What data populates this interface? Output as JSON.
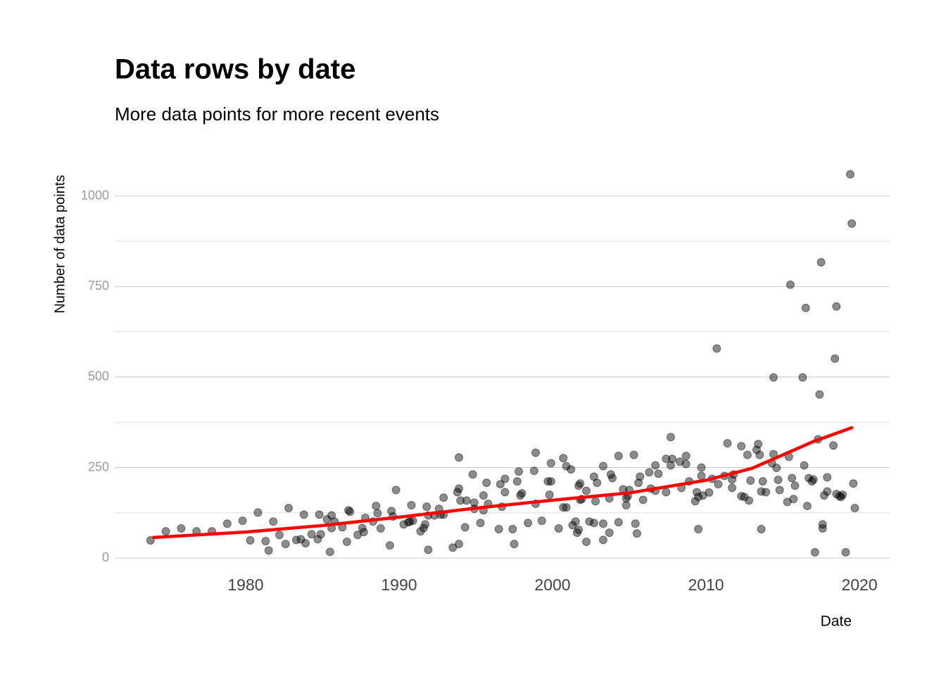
{
  "chart_data": {
    "type": "scatter",
    "title": "Data rows by date",
    "subtitle": "More data points for more recent events",
    "x_label": "Date",
    "y_label": "Number of data points",
    "xlim": [
      1971.47,
      2021.97
    ],
    "ylim": [
      -23,
      1075
    ],
    "xticks": [
      1980,
      1990,
      2000,
      2010,
      2020
    ],
    "yticks": [
      0,
      250,
      500,
      750,
      1000
    ],
    "y_minor_ticks": [
      125,
      375,
      625,
      875
    ],
    "grid": true,
    "color": "#000000",
    "opacity": 0.45,
    "x": [
      1973.8,
      1974.8,
      1975.8,
      1976.8,
      1977.8,
      1978.8,
      1979.8,
      1980.3,
      1980.8,
      1981.3,
      1981.5,
      1981.8,
      1982.2,
      1982.6,
      1982.8,
      1983.3,
      1983.6,
      1983.8,
      1983.9,
      1984.3,
      1984.7,
      1984.8,
      1984.9,
      1985.3,
      1985.5,
      1985.6,
      1985.6,
      1985.8,
      1986.3,
      1986.6,
      1986.7,
      1986.8,
      1987.3,
      1987.6,
      1987.7,
      1987.8,
      1988.3,
      1988.5,
      1988.6,
      1988.8,
      1989.4,
      1989.5,
      1989.6,
      1989.8,
      1990.3,
      1990.6,
      1990.7,
      1990.9,
      1990.8,
      1991.4,
      1991.6,
      1991.7,
      1991.8,
      1991.9,
      1991.9,
      1992.3,
      1992.6,
      1992.7,
      1992.9,
      1992.9,
      1993.5,
      1993.8,
      1993.9,
      1993.9,
      1993.9,
      1994.0,
      1994.3,
      1994.4,
      1994.8,
      1994.9,
      1994.9,
      1995.3,
      1995.5,
      1995.5,
      1995.7,
      1995.8,
      1996.5,
      1996.6,
      1996.7,
      1996.9,
      1996.9,
      1997.4,
      1997.5,
      1997.7,
      1997.8,
      1997.9,
      1998.0,
      1998.4,
      1998.8,
      1998.9,
      1998.9,
      1999.3,
      1999.7,
      1999.8,
      1999.9,
      1999.9,
      2000.4,
      2000.7,
      2000.7,
      2000.9,
      2000.9,
      2001.2,
      2001.3,
      2001.5,
      2001.6,
      2001.7,
      2001.7,
      2001.8,
      2001.8,
      2001.9,
      2002.2,
      2002.2,
      2002.4,
      2002.7,
      2002.7,
      2002.8,
      2002.9,
      2003.3,
      2003.3,
      2003.3,
      2003.7,
      2003.7,
      2003.8,
      2003.9,
      2004.3,
      2004.3,
      2004.6,
      2004.8,
      2004.8,
      2004.9,
      2005.0,
      2005.3,
      2005.4,
      2005.5,
      2005.6,
      2005.7,
      2005.9,
      2006.3,
      2006.4,
      2006.7,
      2006.7,
      2006.9,
      2007.4,
      2007.4,
      2007.7,
      2007.7,
      2007.8,
      2008.3,
      2008.4,
      2008.7,
      2008.7,
      2008.9,
      2009.3,
      2009.4,
      2009.5,
      2009.5,
      2009.7,
      2009.7,
      2009.8,
      2010.2,
      2010.4,
      2010.7,
      2010.8,
      2011.2,
      2011.4,
      2011.7,
      2011.7,
      2011.8,
      2012.3,
      2012.3,
      2012.5,
      2012.7,
      2012.8,
      2012.9,
      2013.3,
      2013.4,
      2013.5,
      2013.6,
      2013.6,
      2013.7,
      2013.9,
      2014.3,
      2014.4,
      2014.4,
      2014.6,
      2014.7,
      2014.8,
      2015.3,
      2015.4,
      2015.5,
      2015.6,
      2015.7,
      2015.8,
      2016.3,
      2016.4,
      2016.5,
      2016.6,
      2016.7,
      2016.9,
      2017.0,
      2017.1,
      2017.3,
      2017.4,
      2017.5,
      2017.6,
      2017.6,
      2017.7,
      2017.9,
      2017.9,
      2018.3,
      2018.4,
      2018.5,
      2018.5,
      2018.7,
      2018.8,
      2018.9,
      2019.1,
      2019.4,
      2019.5,
      2019.6,
      2019.7
    ],
    "values": [
      49,
      74,
      82,
      74,
      74,
      95,
      103,
      49,
      126,
      47,
      21,
      101,
      64,
      39,
      138,
      50,
      52,
      120,
      41,
      66,
      52,
      120,
      66,
      107,
      17,
      83,
      118,
      101,
      85,
      45,
      132,
      128,
      64,
      83,
      72,
      111,
      101,
      144,
      124,
      82,
      35,
      130,
      115,
      188,
      93,
      99,
      101,
      103,
      146,
      74,
      83,
      93,
      142,
      23,
      118,
      118,
      136,
      120,
      120,
      167,
      29,
      182,
      278,
      39,
      192,
      159,
      85,
      159,
      231,
      136,
      153,
      97,
      132,
      173,
      208,
      150,
      80,
      204,
      142,
      219,
      182,
      80,
      39,
      212,
      239,
      173,
      179,
      97,
      241,
      150,
      291,
      103,
      212,
      175,
      212,
      262,
      82,
      140,
      276,
      140,
      254,
      245,
      91,
      101,
      70,
      200,
      78,
      206,
      161,
      163,
      45,
      186,
      101,
      97,
      225,
      157,
      208,
      50,
      254,
      95,
      165,
      70,
      231,
      221,
      99,
      282,
      190,
      146,
      165,
      171,
      188,
      285,
      95,
      68,
      208,
      225,
      161,
      237,
      192,
      256,
      186,
      233,
      182,
      274,
      334,
      256,
      274,
      266,
      194,
      282,
      260,
      212,
      157,
      182,
      80,
      169,
      227,
      250,
      173,
      181,
      219,
      579,
      204,
      227,
      317,
      217,
      194,
      231,
      171,
      309,
      169,
      285,
      159,
      214,
      299,
      315,
      285,
      80,
      184,
      212,
      182,
      262,
      287,
      499,
      249,
      216,
      188,
      155,
      280,
      755,
      221,
      163,
      200,
      499,
      256,
      691,
      144,
      221,
      212,
      217,
      16,
      328,
      452,
      817,
      93,
      82,
      173,
      223,
      184,
      311,
      551,
      695,
      177,
      171,
      169,
      175,
      16,
      1060,
      924,
      206,
      138
    ],
    "trend": {
      "color": "#ff0000",
      "x": [
        1974,
        1980,
        1985,
        1990,
        1995,
        2000,
        2005,
        2010,
        2013,
        2015,
        2017,
        2019.5
      ],
      "values": [
        57,
        72,
        90,
        113,
        138,
        160,
        180,
        215,
        248,
        285,
        322,
        360
      ]
    }
  }
}
